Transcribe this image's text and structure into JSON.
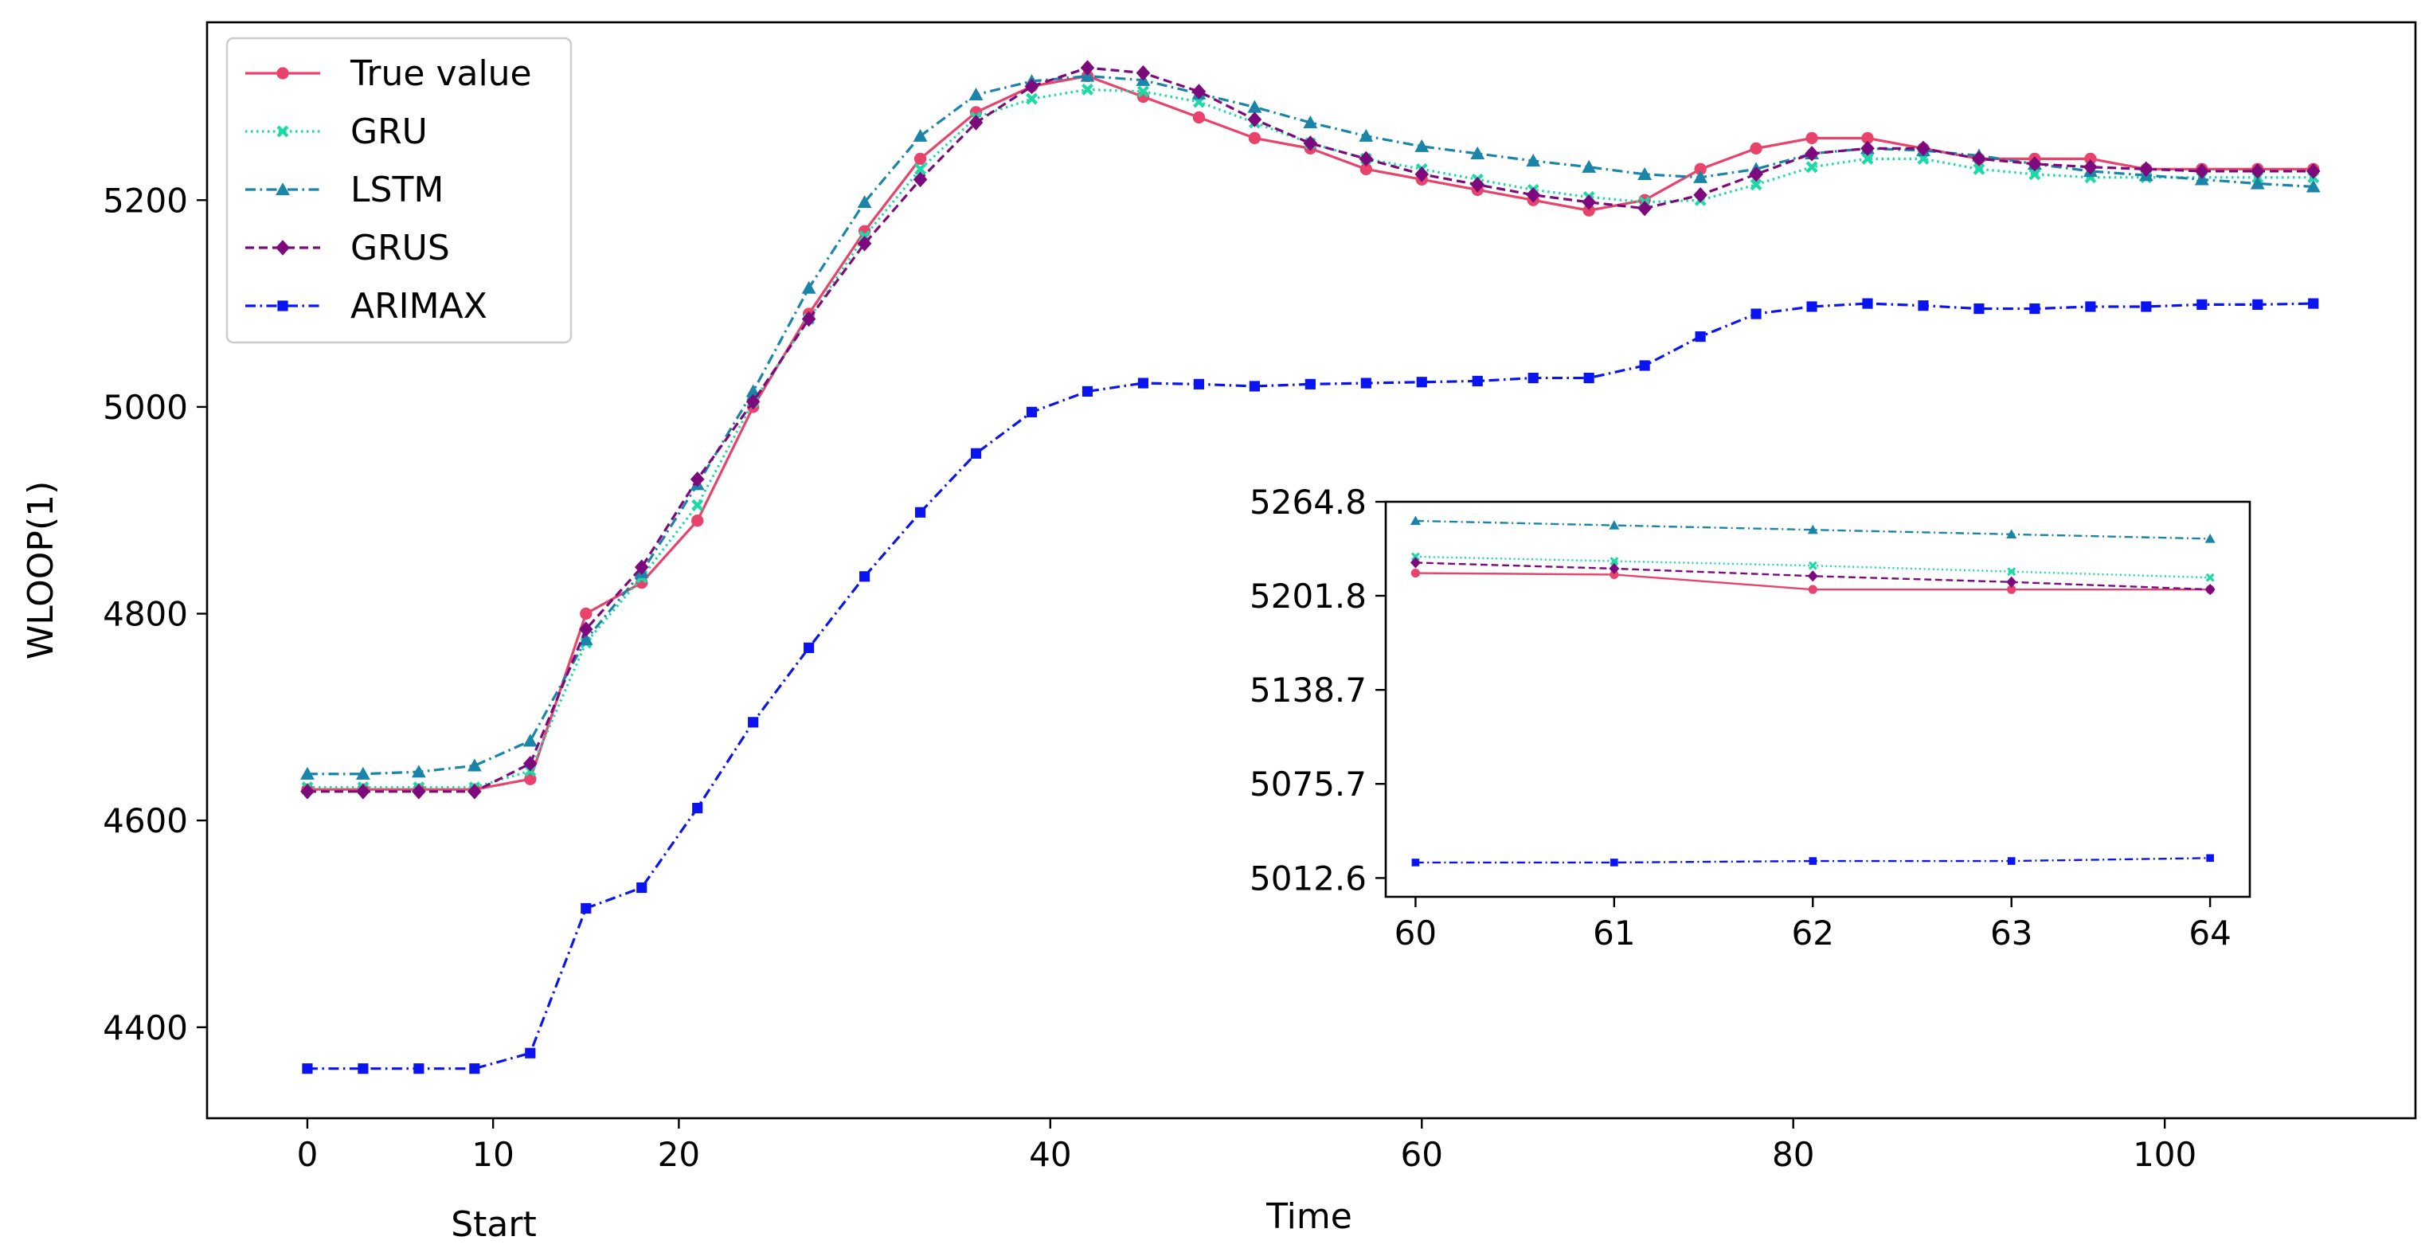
{
  "chart_data": {
    "main": {
      "type": "line",
      "xlabel": "Time",
      "ylabel": "WLOOP(1)",
      "extra_xlabel": "Start",
      "xlim": [
        -5.4,
        113.5
      ],
      "ylim": [
        4312,
        5372
      ],
      "xticks": [
        0,
        20,
        40,
        60,
        80,
        100
      ],
      "xticks_minor_labeled": [
        10
      ],
      "yticks": [
        4400,
        4600,
        4800,
        5000,
        5200
      ],
      "legend_position": "upper-left",
      "x": [
        0,
        3,
        6,
        9,
        12,
        15,
        18,
        21,
        24,
        27,
        30,
        33,
        36,
        39,
        42,
        45,
        48,
        51,
        54,
        57,
        60,
        63,
        66,
        69,
        72,
        75,
        78,
        81,
        84,
        87,
        90,
        93,
        96,
        99,
        102,
        105,
        108
      ],
      "series": [
        {
          "name": "True value",
          "color": "#e8436a",
          "dash": "solid",
          "marker": "circle",
          "x": [
            0,
            3,
            6,
            9,
            12,
            15,
            18,
            21,
            24,
            27,
            30,
            33,
            36,
            39,
            42,
            45,
            48,
            51,
            54,
            57,
            60,
            63,
            66,
            69,
            72,
            75,
            78,
            81,
            84,
            87,
            90,
            93,
            96,
            99,
            102,
            105,
            108
          ],
          "values": [
            4630,
            4630,
            4630,
            4630,
            4640,
            4800,
            4830,
            4890,
            5000,
            5090,
            5170,
            5240,
            5285,
            5310,
            5320,
            5300,
            5280,
            5260,
            5250,
            5230,
            5220,
            5210,
            5200,
            5190,
            5200,
            5230,
            5250,
            5260,
            5260,
            5250,
            5240,
            5240,
            5240,
            5230,
            5230,
            5230,
            5230
          ]
        },
        {
          "name": "GRU",
          "color": "#1adba5",
          "dash": "dotted",
          "marker": "x",
          "x": [
            0,
            3,
            6,
            9,
            12,
            15,
            18,
            21,
            24,
            27,
            30,
            33,
            36,
            39,
            42,
            45,
            48,
            51,
            54,
            57,
            60,
            63,
            66,
            69,
            72,
            75,
            78,
            81,
            84,
            87,
            90,
            93,
            96,
            99,
            102,
            105,
            108
          ],
          "values": [
            4632,
            4632,
            4632,
            4632,
            4648,
            4772,
            4835,
            4905,
            5005,
            5085,
            5165,
            5230,
            5280,
            5298,
            5307,
            5305,
            5295,
            5275,
            5255,
            5240,
            5230,
            5220,
            5210,
            5203,
            5198,
            5200,
            5215,
            5232,
            5240,
            5240,
            5230,
            5225,
            5222,
            5222,
            5222,
            5222,
            5222
          ]
        },
        {
          "name": "LSTM",
          "color": "#1a85a8",
          "dash": "dashdot",
          "marker": "triangle",
          "x": [
            0,
            3,
            6,
            9,
            12,
            15,
            18,
            21,
            24,
            27,
            30,
            33,
            36,
            39,
            42,
            45,
            48,
            51,
            54,
            57,
            60,
            63,
            66,
            69,
            72,
            75,
            78,
            81,
            84,
            87,
            90,
            93,
            96,
            99,
            102,
            105,
            108
          ],
          "values": [
            4645,
            4645,
            4647,
            4653,
            4677,
            4775,
            4840,
            4925,
            5015,
            5115,
            5198,
            5262,
            5302,
            5315,
            5320,
            5316,
            5303,
            5290,
            5275,
            5262,
            5252,
            5245,
            5238,
            5232,
            5225,
            5222,
            5230,
            5245,
            5250,
            5248,
            5243,
            5235,
            5228,
            5224,
            5220,
            5216,
            5213
          ]
        },
        {
          "name": "GRUS",
          "color": "#7d0a7d",
          "dash": "dashed",
          "marker": "diamond",
          "x": [
            0,
            3,
            6,
            9,
            12,
            15,
            18,
            21,
            24,
            27,
            30,
            33,
            36,
            39,
            42,
            45,
            48,
            51,
            54,
            57,
            60,
            63,
            66,
            69,
            72,
            75,
            78,
            81,
            84,
            87,
            90,
            93,
            96,
            99,
            102,
            105,
            108
          ],
          "values": [
            4628,
            4628,
            4628,
            4628,
            4655,
            4785,
            4845,
            4930,
            5005,
            5085,
            5158,
            5220,
            5275,
            5310,
            5328,
            5323,
            5305,
            5278,
            5255,
            5240,
            5225,
            5215,
            5205,
            5198,
            5192,
            5205,
            5225,
            5245,
            5250,
            5250,
            5240,
            5235,
            5232,
            5230,
            5228,
            5228,
            5228
          ]
        },
        {
          "name": "ARIMAX",
          "color": "#0a14f0",
          "dash": "dashdot",
          "marker": "square",
          "x": [
            0,
            3,
            6,
            9,
            12,
            15,
            18,
            21,
            24,
            27,
            30,
            33,
            36,
            39,
            42,
            45,
            48,
            51,
            54,
            57,
            60,
            63,
            66,
            69,
            72,
            75,
            78,
            81,
            84,
            87,
            90,
            93,
            96,
            99,
            102,
            105,
            108
          ],
          "values": [
            4360,
            4360,
            4360,
            4360,
            4375,
            4515,
            4535,
            4612,
            4695,
            4767,
            4836,
            4898,
            4955,
            4995,
            5015,
            5023,
            5022,
            5020,
            5022,
            5023,
            5024,
            5025,
            5028,
            5028,
            5040,
            5068,
            5090,
            5097,
            5100,
            5098,
            5095,
            5095,
            5097,
            5097,
            5099,
            5099,
            5100
          ]
        }
      ]
    },
    "inset": {
      "type": "line",
      "xlim": [
        59.85,
        64.2
      ],
      "ylim": [
        5000,
        5264.8
      ],
      "xticks": [
        60,
        61,
        62,
        63,
        64
      ],
      "yticks": [
        5012.6,
        5075.7,
        5138.7,
        5201.8,
        5264.8
      ],
      "ytick_labels": [
        "5012.6",
        "5075.7",
        "5138.7",
        "5201.8",
        "5264.8"
      ],
      "series": [
        {
          "name": "True value",
          "color": "#e8436a",
          "dash": "solid",
          "marker": "circle",
          "x": [
            60,
            61,
            62,
            63,
            64
          ],
          "values": [
            5217,
            5216,
            5206,
            5206,
            5206
          ]
        },
        {
          "name": "GRU",
          "color": "#1adba5",
          "dash": "dotted",
          "marker": "x",
          "x": [
            60,
            61,
            62,
            63,
            64
          ],
          "values": [
            5228,
            5225,
            5222,
            5218,
            5214
          ]
        },
        {
          "name": "LSTM",
          "color": "#1a85a8",
          "dash": "dashdot",
          "marker": "triangle",
          "x": [
            60,
            61,
            62,
            63,
            64
          ],
          "values": [
            5252,
            5249,
            5246,
            5243,
            5240
          ]
        },
        {
          "name": "GRUS",
          "color": "#7d0a7d",
          "dash": "dashed",
          "marker": "diamond",
          "x": [
            60,
            61,
            62,
            63,
            64
          ],
          "values": [
            5224,
            5220,
            5215,
            5211,
            5206
          ]
        },
        {
          "name": "ARIMAX",
          "color": "#0a14f0",
          "dash": "dashdot",
          "marker": "square",
          "x": [
            60,
            61,
            62,
            63,
            64
          ],
          "values": [
            5023,
            5023,
            5024,
            5024,
            5026
          ]
        }
      ]
    }
  }
}
